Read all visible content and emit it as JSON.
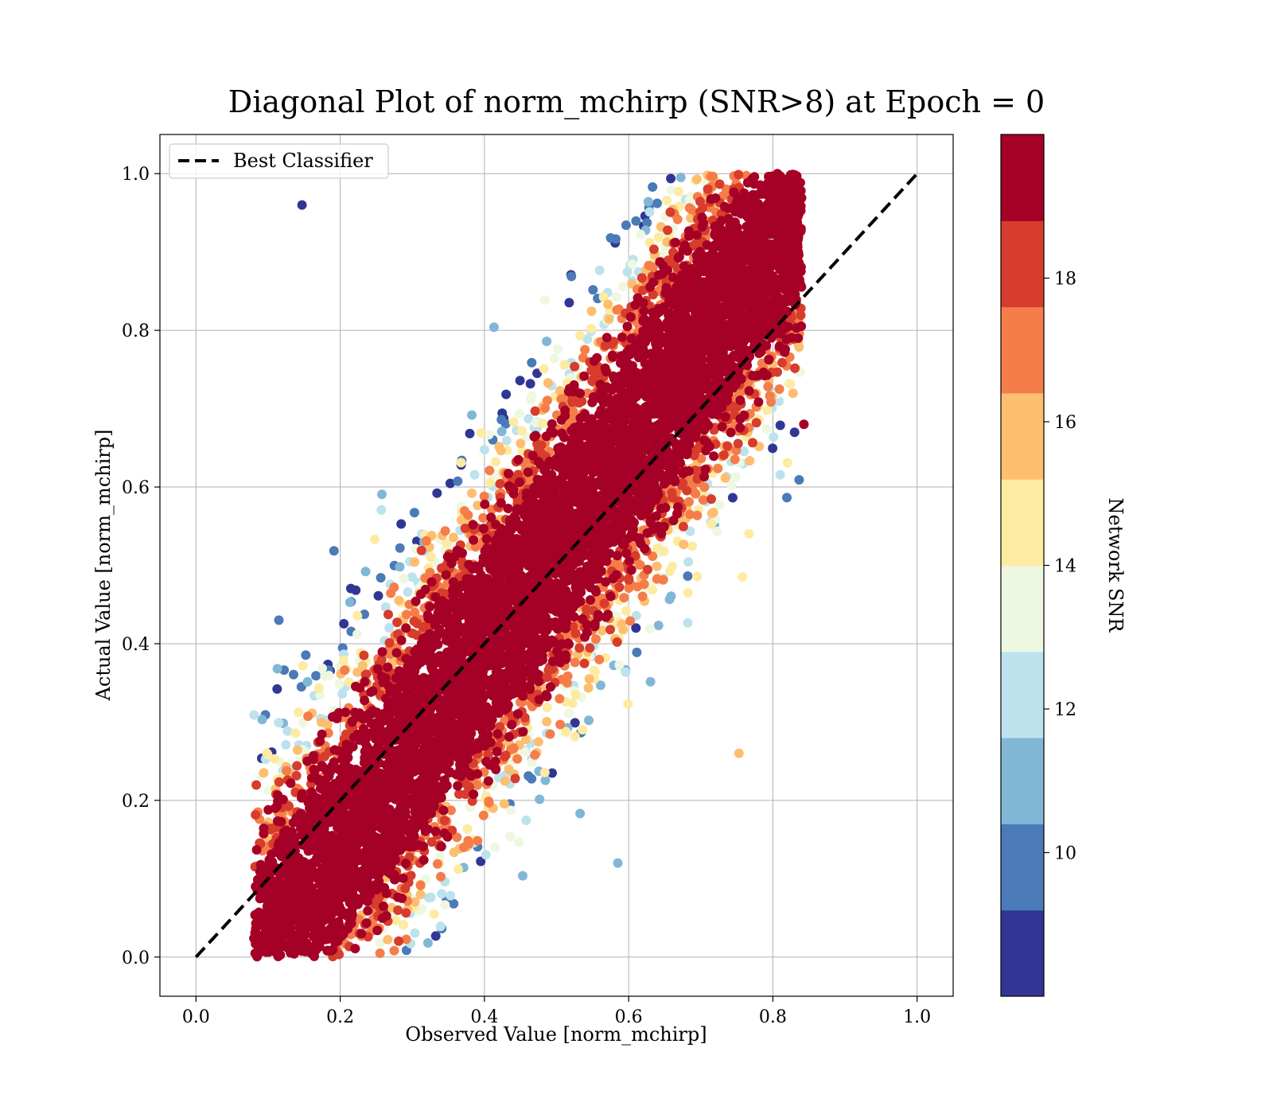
{
  "chart_data": {
    "type": "scatter",
    "title": "Diagonal Plot of norm_mchirp (SNR>8) at Epoch = 0",
    "xlabel": "Observed Value [norm_mchirp]",
    "ylabel": "Actual Value [norm_mchirp]",
    "xlim": [
      -0.05,
      1.05
    ],
    "ylim": [
      -0.05,
      1.05
    ],
    "x_ticks": [
      "0.0",
      "0.2",
      "0.4",
      "0.6",
      "0.8",
      "1.0"
    ],
    "y_ticks": [
      "0.0",
      "0.2",
      "0.4",
      "0.6",
      "0.8",
      "1.0"
    ],
    "grid": true,
    "legend": {
      "placement": "upper-left",
      "entries": [
        {
          "label": "Best Classifier",
          "style": "black dashed line"
        }
      ]
    },
    "reference_line": {
      "name": "Best Classifier",
      "x": [
        0.0,
        1.0
      ],
      "y": [
        0.0,
        1.0
      ],
      "color": "#000000",
      "dash": true
    },
    "colorbar": {
      "label": "Network SNR",
      "range": [
        8,
        20
      ],
      "ticks": [
        "10",
        "12",
        "14",
        "16",
        "18"
      ],
      "tick_values": [
        10,
        12,
        14,
        16,
        18
      ],
      "colors": [
        "#313695",
        "#4a7ab7",
        "#81b7d6",
        "#bde2ee",
        "#eef7e0",
        "#fdeba1",
        "#fdbe6f",
        "#f57d4a",
        "#d73c2c",
        "#a50026"
      ]
    },
    "point_cloud": {
      "description_values": "Dense scatter of observed vs actual normalized chirp mass, colored by network SNR; high-SNR points (SNR≥18) cluster along the diagonal, lower-SNR points spread above it toward upper-left and below it toward lower-right.",
      "x_range_observed": [
        0.08,
        0.84
      ],
      "y_range_actual": [
        0.0,
        1.0
      ],
      "core_band_halfwidth": 0.12,
      "notable_points": [
        {
          "x": 0.147,
          "y": 0.96,
          "snr": 8.5
        },
        {
          "x": 0.843,
          "y": 0.68,
          "snr": 19.5
        },
        {
          "x": 0.115,
          "y": 0.43,
          "snr": 9.5
        },
        {
          "x": 0.585,
          "y": 0.12,
          "snr": 11
        },
        {
          "x": 0.753,
          "y": 0.26,
          "snr": 15.5
        }
      ]
    }
  }
}
